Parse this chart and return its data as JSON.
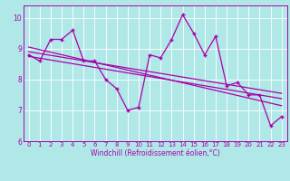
{
  "title": "",
  "xlabel": "Windchill (Refroidissement éolien,°C)",
  "background_color": "#b0e8e8",
  "line_color": "#aa00aa",
  "xlim": [
    -0.5,
    23.5
  ],
  "ylim": [
    6.0,
    10.4
  ],
  "yticks": [
    6,
    7,
    8,
    9,
    10
  ],
  "xticks": [
    0,
    1,
    2,
    3,
    4,
    5,
    6,
    7,
    8,
    9,
    10,
    11,
    12,
    13,
    14,
    15,
    16,
    17,
    18,
    19,
    20,
    21,
    22,
    23
  ],
  "data_y": [
    8.8,
    8.6,
    9.3,
    9.3,
    9.6,
    8.6,
    8.6,
    8.0,
    7.7,
    7.0,
    7.1,
    8.8,
    8.7,
    9.3,
    10.1,
    9.5,
    8.8,
    9.4,
    7.8,
    7.9,
    7.5,
    7.5,
    6.5,
    6.8
  ],
  "reg_lines": [
    [
      [
        0,
        9.05
      ],
      [
        23,
        7.15
      ]
    ],
    [
      [
        0,
        8.9
      ],
      [
        23,
        7.55
      ]
    ],
    [
      [
        0,
        8.75
      ],
      [
        23,
        7.38
      ]
    ]
  ],
  "grid_color": "#ffffff",
  "xlabel_fontsize": 5.5,
  "tick_fontsize": 5.0
}
